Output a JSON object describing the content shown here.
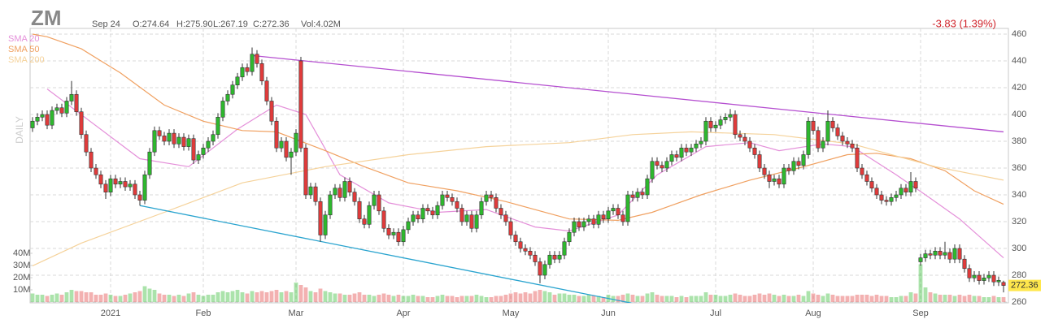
{
  "chart_data": {
    "type": "candlestick",
    "title": "ZM",
    "info": [
      "Sep 24",
      "O:274.64",
      "H:275.90",
      "L:267.19",
      "C:272.36",
      "Vol:4.02M"
    ],
    "change_text": "-3.83 (1.39%)",
    "period_label": "DAILY",
    "up_color": "#2eb82e",
    "down_color": "#e03b3b",
    "change_color": "#d0232a",
    "grid": true,
    "xlim": [
      -0.5,
      200
    ],
    "xticks": [
      {
        "value": 16,
        "label": "2021"
      },
      {
        "value": 35,
        "label": "Feb"
      },
      {
        "value": 54,
        "label": "Mar"
      },
      {
        "value": 76,
        "label": "Apr"
      },
      {
        "value": 98,
        "label": "May"
      },
      {
        "value": 118,
        "label": "Jun"
      },
      {
        "value": 140,
        "label": "Jul"
      },
      {
        "value": 160,
        "label": "Aug"
      },
      {
        "value": 182,
        "label": "Sep"
      }
    ],
    "ylim": [
      260,
      460
    ],
    "yticks": [
      260,
      280,
      300,
      320,
      340,
      360,
      380,
      400,
      420,
      440,
      460
    ],
    "volume_ylim": [
      0,
      40
    ],
    "volume_ticks": [
      {
        "value": 10,
        "label": "10M"
      },
      {
        "value": 20,
        "label": "20M"
      },
      {
        "value": 30,
        "label": "30M"
      },
      {
        "value": 40,
        "label": "40M"
      }
    ],
    "open": [
      390,
      395,
      398,
      400,
      392,
      403,
      405,
      401,
      410,
      415,
      402,
      385,
      372,
      360,
      355,
      348,
      342,
      352,
      348,
      350,
      346,
      348,
      340,
      336,
      355,
      372,
      388,
      384,
      380,
      386,
      378,
      383,
      376,
      382,
      366,
      370,
      375,
      380,
      385,
      398,
      410,
      415,
      422,
      428,
      435,
      432,
      445,
      438,
      425,
      410,
      395,
      375,
      380,
      368,
      372,
      440,
      375,
      340,
      346,
      335,
      310,
      325,
      340,
      345,
      338,
      350,
      342,
      335,
      322,
      318,
      332,
      340,
      328,
      315,
      310,
      312,
      305,
      314,
      320,
      325,
      322,
      330,
      328,
      325,
      332,
      340,
      338,
      335,
      330,
      320,
      325,
      315,
      325,
      335,
      340,
      338,
      330,
      325,
      320,
      310,
      305,
      300,
      298,
      295,
      290,
      280,
      288,
      295,
      292,
      295,
      305,
      312,
      320,
      316,
      320,
      322,
      318,
      325,
      322,
      328,
      330,
      325,
      320,
      340,
      338,
      342,
      340,
      352,
      365,
      362,
      360,
      365,
      370,
      368,
      375,
      372,
      375,
      378,
      380,
      395,
      390,
      392,
      396,
      398,
      400,
      385,
      383,
      380,
      375,
      370,
      360,
      355,
      350,
      352,
      348,
      360,
      358,
      365,
      362,
      370,
      395,
      388,
      375,
      380,
      395,
      390,
      384,
      380,
      378,
      375,
      360,
      355,
      350,
      345,
      340,
      336,
      335,
      338,
      340,
      345,
      342,
      350,
      290,
      293,
      296,
      295,
      298,
      295,
      297,
      292,
      300,
      292,
      285,
      278,
      280,
      276,
      278,
      280,
      275,
      274.64
    ],
    "high": [
      398,
      401,
      403,
      403,
      406,
      408,
      408,
      413,
      425,
      418,
      405,
      388,
      375,
      363,
      358,
      351,
      355,
      355,
      353,
      353,
      351,
      351,
      343,
      358,
      375,
      391,
      391,
      387,
      389,
      389,
      386,
      386,
      385,
      385,
      373,
      378,
      383,
      388,
      401,
      413,
      418,
      425,
      431,
      438,
      438,
      450,
      448,
      441,
      428,
      413,
      398,
      383,
      383,
      375,
      389,
      443,
      378,
      349,
      349,
      338,
      328,
      343,
      348,
      348,
      353,
      353,
      345,
      338,
      325,
      335,
      343,
      343,
      331,
      318,
      315,
      315,
      317,
      323,
      328,
      328,
      333,
      333,
      331,
      335,
      343,
      343,
      341,
      338,
      333,
      328,
      328,
      328,
      338,
      343,
      343,
      341,
      333,
      328,
      323,
      313,
      308,
      303,
      301,
      298,
      293,
      291,
      298,
      298,
      298,
      308,
      315,
      323,
      323,
      323,
      325,
      325,
      328,
      328,
      331,
      333,
      333,
      328,
      343,
      343,
      345,
      345,
      355,
      368,
      368,
      365,
      368,
      373,
      373,
      378,
      378,
      378,
      381,
      383,
      398,
      398,
      395,
      399,
      401,
      404,
      403,
      388,
      386,
      383,
      378,
      373,
      363,
      358,
      355,
      355,
      363,
      363,
      368,
      368,
      373,
      398,
      398,
      391,
      383,
      403,
      398,
      393,
      387,
      383,
      381,
      378,
      363,
      358,
      353,
      348,
      343,
      339,
      341,
      343,
      348,
      348,
      357,
      353,
      296,
      299,
      299,
      301,
      301,
      305,
      300,
      303,
      303,
      295,
      288,
      283,
      283,
      281,
      283,
      283,
      279,
      275.9
    ],
    "low": [
      387,
      392,
      395,
      389,
      389,
      400,
      398,
      398,
      407,
      399,
      382,
      369,
      357,
      352,
      345,
      337,
      339,
      345,
      345,
      343,
      343,
      337,
      332,
      333,
      352,
      369,
      381,
      377,
      377,
      375,
      375,
      373,
      373,
      363,
      363,
      367,
      372,
      377,
      382,
      395,
      407,
      412,
      419,
      425,
      429,
      429,
      435,
      422,
      407,
      392,
      372,
      372,
      365,
      355,
      369,
      372,
      337,
      337,
      332,
      305,
      307,
      322,
      337,
      335,
      335,
      339,
      332,
      319,
      315,
      315,
      329,
      325,
      312,
      307,
      307,
      302,
      302,
      311,
      317,
      319,
      319,
      325,
      322,
      322,
      329,
      335,
      332,
      327,
      317,
      317,
      312,
      312,
      322,
      332,
      335,
      327,
      322,
      317,
      307,
      302,
      297,
      295,
      292,
      287,
      274,
      277,
      285,
      289,
      289,
      292,
      302,
      309,
      313,
      313,
      317,
      315,
      315,
      319,
      319,
      325,
      322,
      317,
      317,
      335,
      335,
      337,
      337,
      349,
      359,
      357,
      357,
      362,
      365,
      365,
      369,
      369,
      372,
      375,
      377,
      387,
      387,
      389,
      393,
      395,
      382,
      380,
      377,
      372,
      367,
      357,
      352,
      345,
      347,
      345,
      345,
      355,
      355,
      359,
      359,
      367,
      385,
      372,
      372,
      377,
      387,
      381,
      377,
      375,
      372,
      357,
      352,
      347,
      342,
      337,
      333,
      332,
      332,
      335,
      337,
      339,
      339,
      342,
      287,
      290,
      292,
      292,
      292,
      292,
      289,
      289,
      289,
      282,
      275,
      275,
      273,
      273,
      275,
      272,
      272,
      267.19
    ],
    "close": [
      395,
      398,
      400,
      392,
      403,
      405,
      401,
      410,
      415,
      402,
      385,
      372,
      360,
      355,
      348,
      342,
      352,
      348,
      350,
      346,
      348,
      340,
      336,
      355,
      372,
      388,
      384,
      380,
      386,
      378,
      383,
      376,
      382,
      366,
      370,
      375,
      380,
      385,
      398,
      410,
      415,
      422,
      428,
      435,
      432,
      445,
      438,
      425,
      410,
      395,
      375,
      380,
      368,
      372,
      386,
      375,
      340,
      346,
      335,
      310,
      325,
      340,
      345,
      338,
      350,
      342,
      335,
      322,
      318,
      332,
      340,
      328,
      315,
      310,
      312,
      305,
      314,
      320,
      325,
      322,
      330,
      328,
      325,
      332,
      340,
      338,
      335,
      330,
      320,
      325,
      315,
      325,
      335,
      340,
      338,
      330,
      325,
      320,
      310,
      305,
      300,
      298,
      295,
      290,
      280,
      288,
      295,
      292,
      295,
      305,
      312,
      320,
      316,
      320,
      322,
      318,
      325,
      322,
      328,
      330,
      325,
      320,
      340,
      338,
      342,
      340,
      352,
      365,
      362,
      360,
      365,
      370,
      368,
      375,
      372,
      375,
      378,
      380,
      395,
      390,
      392,
      396,
      398,
      400,
      385,
      383,
      380,
      375,
      370,
      360,
      355,
      350,
      352,
      348,
      360,
      358,
      365,
      362,
      370,
      395,
      388,
      375,
      380,
      395,
      390,
      384,
      380,
      378,
      375,
      360,
      355,
      350,
      345,
      340,
      336,
      335,
      338,
      340,
      345,
      342,
      350,
      345,
      293,
      296,
      295,
      298,
      295,
      297,
      292,
      300,
      292,
      285,
      278,
      280,
      276,
      278,
      280,
      275,
      276.19,
      272.36
    ],
    "volume": [
      7,
      6,
      6,
      5,
      6,
      7,
      6,
      8,
      10,
      9,
      9,
      8,
      8,
      6,
      6,
      7,
      6,
      5,
      5,
      6,
      7,
      8,
      9,
      13,
      11,
      10,
      7,
      6,
      6,
      5,
      6,
      5,
      7,
      8,
      6,
      5,
      6,
      6,
      8,
      9,
      8,
      9,
      10,
      8,
      7,
      9,
      8,
      9,
      8,
      9,
      10,
      8,
      9,
      8,
      16,
      14,
      12,
      9,
      8,
      11,
      9,
      8,
      7,
      7,
      6,
      6,
      7,
      8,
      6,
      6,
      5,
      6,
      7,
      6,
      5,
      6,
      5,
      5,
      6,
      5,
      5,
      4,
      4,
      5,
      6,
      5,
      5,
      4,
      5,
      5,
      5,
      6,
      5,
      4,
      4,
      5,
      5,
      6,
      7,
      8,
      7,
      8,
      7,
      9,
      10,
      9,
      8,
      6,
      7,
      7,
      6,
      6,
      5,
      5,
      6,
      5,
      5,
      4,
      6,
      5,
      5,
      6,
      7,
      6,
      5,
      5,
      7,
      8,
      6,
      5,
      5,
      5,
      4,
      5,
      4,
      5,
      5,
      5,
      8,
      6,
      6,
      5,
      5,
      6,
      7,
      6,
      5,
      5,
      6,
      7,
      6,
      7,
      6,
      5,
      6,
      5,
      5,
      6,
      5,
      9,
      7,
      6,
      5,
      7,
      6,
      5,
      5,
      5,
      5,
      6,
      6,
      6,
      5,
      6,
      5,
      5,
      4,
      4,
      5,
      5,
      8,
      7,
      31,
      12,
      8,
      7,
      6,
      6,
      6,
      5,
      6,
      5,
      6,
      5,
      5,
      4,
      4,
      5,
      4,
      4.02
    ],
    "overlays": [
      {
        "name": "SMA 20",
        "color": "#e48fd9",
        "x": [
          3,
          22,
          32,
          42,
          50,
          56,
          63,
          73,
          83,
          93,
          103,
          110,
          120,
          128,
          138,
          147,
          153,
          162,
          168,
          177,
          183,
          190,
          199
        ],
        "values": [
          419,
          367,
          361,
          389,
          407,
          400,
          355,
          334,
          327,
          329,
          316,
          313,
          325,
          355,
          376,
          379,
          373,
          378,
          376,
          355,
          340,
          322,
          293
        ]
      },
      {
        "name": "SMA 50",
        "color": "#f0a060",
        "x": [
          0,
          3,
          10,
          18,
          27,
          35,
          43,
          50,
          60,
          68,
          77,
          87,
          97,
          110,
          120,
          127,
          137,
          147,
          157,
          167,
          173,
          180,
          187,
          193,
          199
        ],
        "values": [
          460,
          458,
          449,
          431,
          407,
          395,
          388,
          387,
          373,
          361,
          349,
          343,
          335,
          322,
          321,
          327,
          340,
          351,
          360,
          370,
          371,
          367,
          358,
          343,
          333
        ]
      },
      {
        "name": "SMA 200",
        "color": "#f5d29a",
        "x": [
          0,
          10,
          27,
          43,
          60,
          77,
          93,
          110,
          123,
          135,
          152,
          168,
          185,
          199
        ],
        "values": [
          287,
          304,
          327,
          349,
          361,
          370,
          376,
          379,
          385,
          387,
          385,
          378,
          361,
          351
        ]
      }
    ],
    "trendlines": [
      {
        "color": "#b54fd0",
        "x": [
          45,
          199
        ],
        "values": [
          444,
          387
        ]
      },
      {
        "color": "#2aa4cf",
        "x": [
          22,
          123.3
        ],
        "values": [
          332,
          258.8
        ]
      }
    ]
  }
}
